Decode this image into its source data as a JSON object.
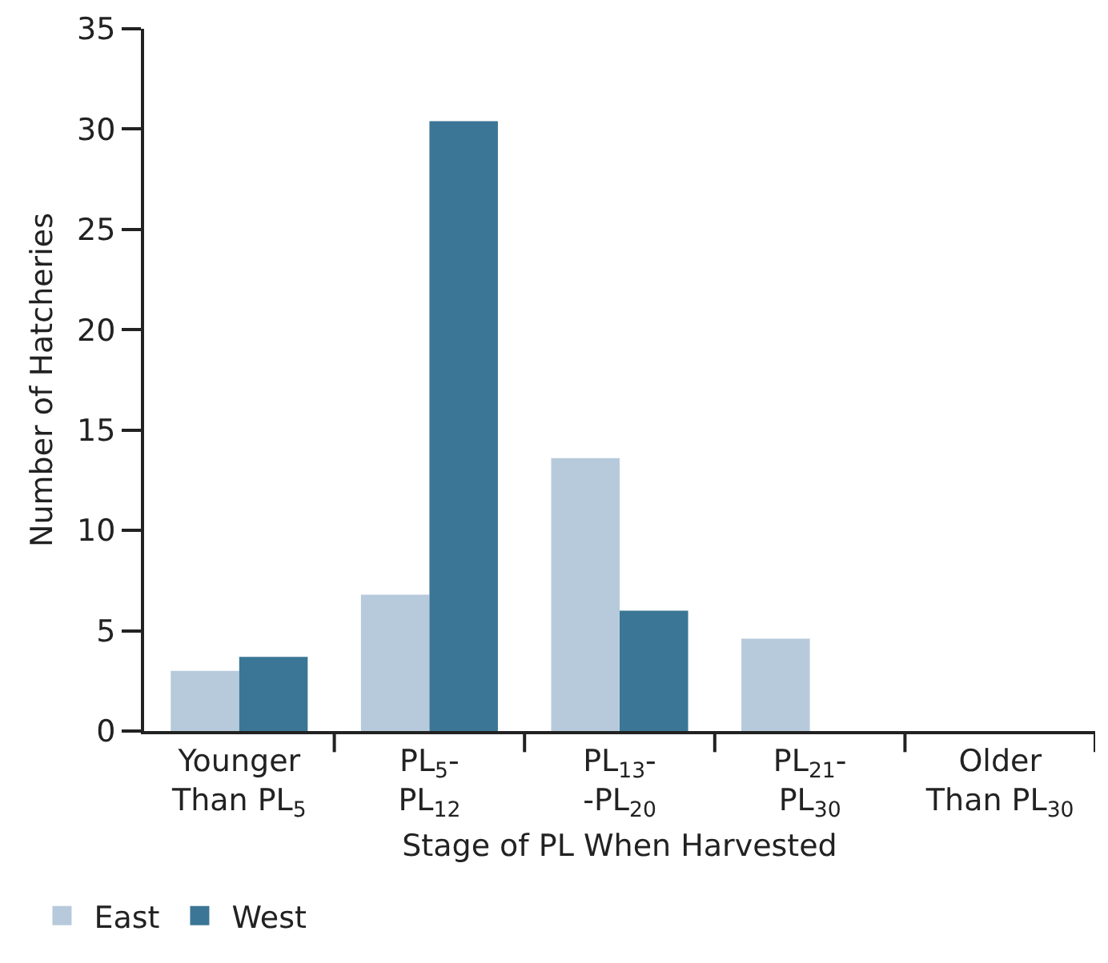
{
  "chart_data": {
    "type": "bar",
    "xlabel": "Stage of PL When Harvested",
    "ylabel": "Number of Hatcheries",
    "categories": [
      "Younger\nThan PL$_{5}$",
      "PL$_{5}$-\nPL$_{12}$",
      "PL$_{13}$-\n-PL$_{20}$",
      "PL$_{21}$-\nPL$_{30}$",
      "Older\nThan PL$_{30}$"
    ],
    "series": [
      {
        "name": "East",
        "color": "#b7cadb",
        "values": [
          3.0,
          6.8,
          13.6,
          4.6,
          0
        ]
      },
      {
        "name": "West",
        "color": "#3b7696",
        "values": [
          3.7,
          30.4,
          6.0,
          0,
          0
        ]
      }
    ],
    "ylim": [
      0,
      35
    ],
    "yticks": [
      0,
      5,
      10,
      15,
      20,
      25,
      30,
      35
    ],
    "grid": false,
    "legend": "bottom left"
  }
}
